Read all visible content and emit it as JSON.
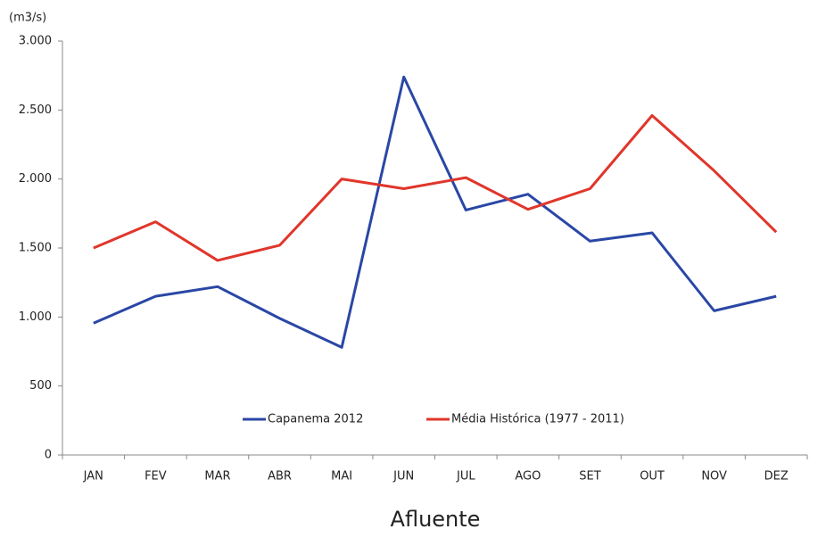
{
  "chart_data": {
    "type": "line",
    "y_unit_label": "(m3/s)",
    "x_label": "Afluente",
    "categories": [
      "JAN",
      "FEV",
      "MAR",
      "ABR",
      "MAI",
      "JUN",
      "JUL",
      "AGO",
      "SET",
      "OUT",
      "NOV",
      "DEZ"
    ],
    "series": [
      {
        "name": "Capanema 2012",
        "color": "#2a47a5",
        "values": [
          955,
          1150,
          1220,
          990,
          780,
          2740,
          1775,
          1890,
          1550,
          1610,
          1045,
          1150
        ]
      },
      {
        "name": "Média Histórica (1977 - 2011)",
        "color": "#e0362b",
        "values": [
          1500,
          1690,
          1410,
          1520,
          2000,
          1930,
          2010,
          1780,
          1930,
          2460,
          2060,
          1615
        ]
      }
    ],
    "ylim": [
      0,
      3000
    ],
    "yticks": [
      0,
      500,
      {
        "value": 1000,
        "label": "1.000"
      },
      {
        "value": 1500,
        "label": "1.500"
      },
      {
        "value": 2000,
        "label": "2.000"
      },
      {
        "value": 2500,
        "label": "2.500"
      },
      {
        "value": 3000,
        "label": "3.000"
      }
    ],
    "legend": "bottom"
  }
}
